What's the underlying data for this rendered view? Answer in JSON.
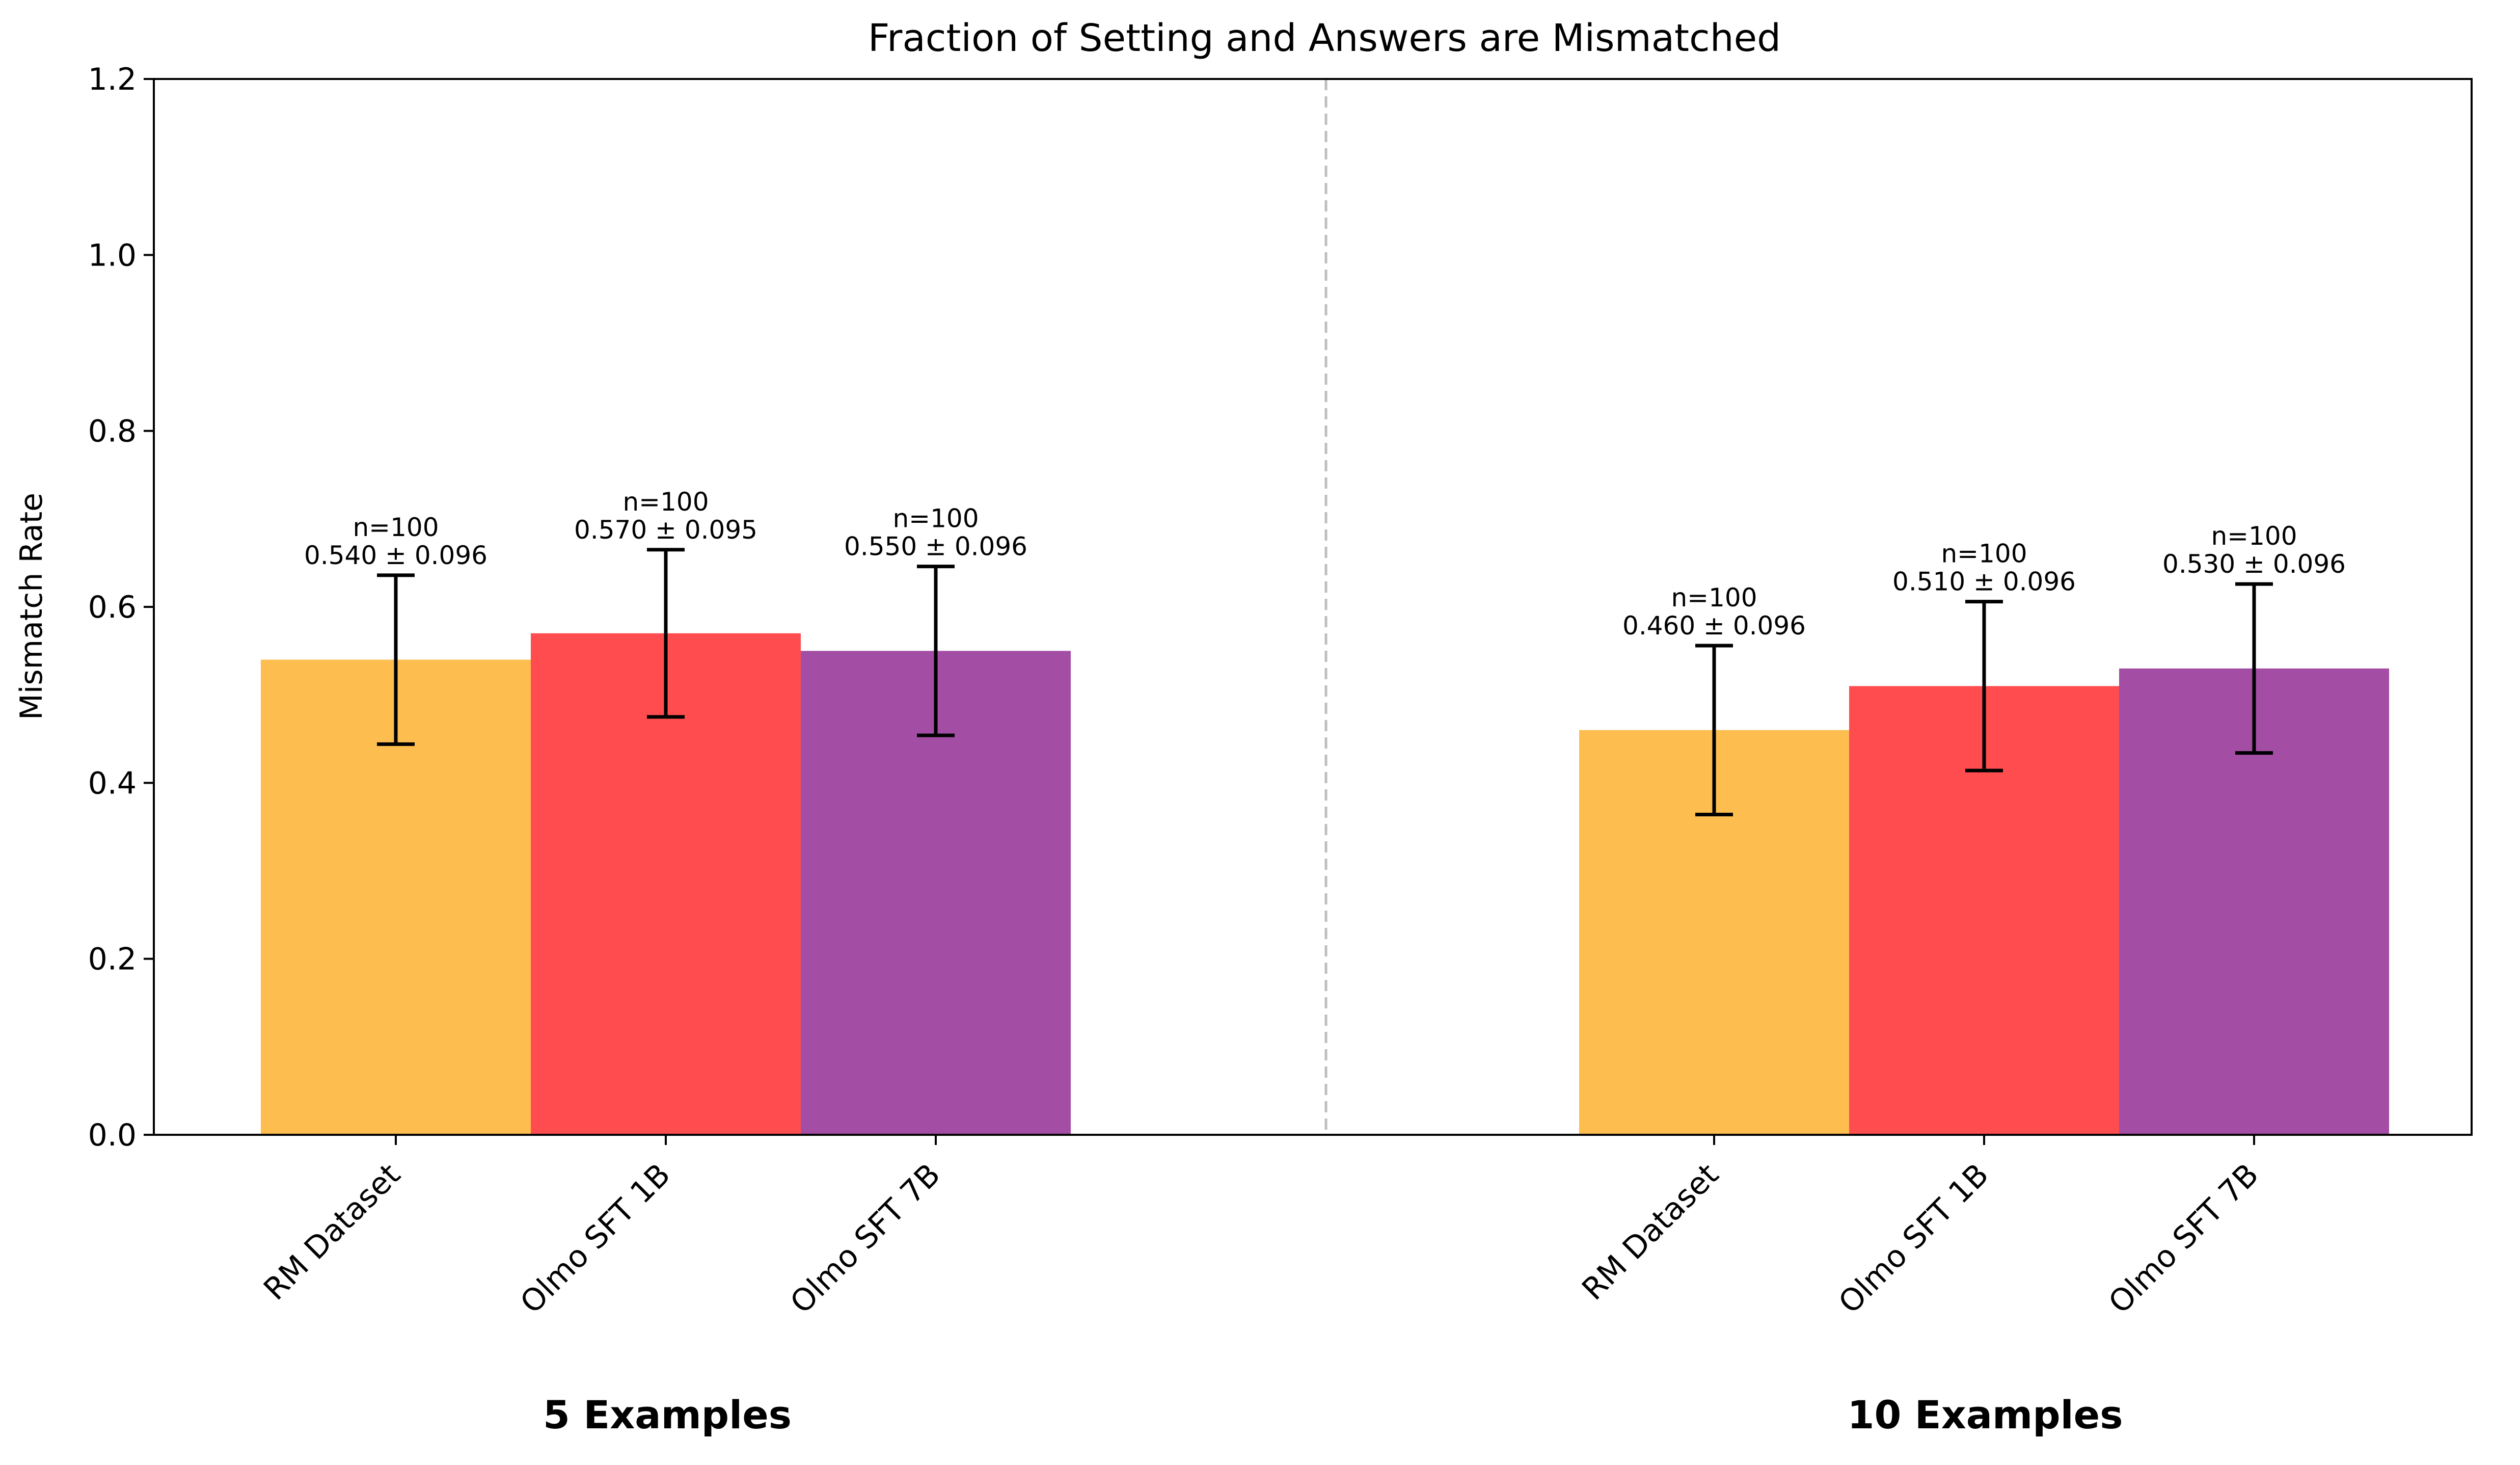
{
  "chart_data": {
    "type": "bar",
    "title": "Fraction of Setting and Answers are Mismatched",
    "ylabel": "Mismatch Rate",
    "xlabel": "",
    "ylim": [
      0,
      1.2
    ],
    "yticks": [
      "0.0",
      "0.2",
      "0.4",
      "0.6",
      "0.8",
      "1.0",
      "1.2"
    ],
    "grid": false,
    "groups": [
      {
        "name": "5 Examples",
        "bars": [
          {
            "category": "RM Dataset",
            "value": 0.54,
            "err": 0.096,
            "n_label": "n=100",
            "value_label": "0.540 ± 0.096",
            "color": "#FDBD4F"
          },
          {
            "category": "Olmo SFT 1B",
            "value": 0.57,
            "err": 0.095,
            "n_label": "n=100",
            "value_label": "0.570 ± 0.095",
            "color": "#FF4D4F"
          },
          {
            "category": "Olmo SFT 7B",
            "value": 0.55,
            "err": 0.096,
            "n_label": "n=100",
            "value_label": "0.550 ± 0.096",
            "color": "#A44DA4"
          }
        ]
      },
      {
        "name": "10 Examples",
        "bars": [
          {
            "category": "RM Dataset",
            "value": 0.46,
            "err": 0.096,
            "n_label": "n=100",
            "value_label": "0.460 ± 0.096",
            "color": "#FDBD4F"
          },
          {
            "category": "Olmo SFT 1B",
            "value": 0.51,
            "err": 0.096,
            "n_label": "n=100",
            "value_label": "0.510 ± 0.096",
            "color": "#FF4D4F"
          },
          {
            "category": "Olmo SFT 7B",
            "value": 0.53,
            "err": 0.096,
            "n_label": "n=100",
            "value_label": "0.530 ± 0.096",
            "color": "#A44DA4"
          }
        ]
      }
    ],
    "separator": "dashed vertical line between groups"
  }
}
